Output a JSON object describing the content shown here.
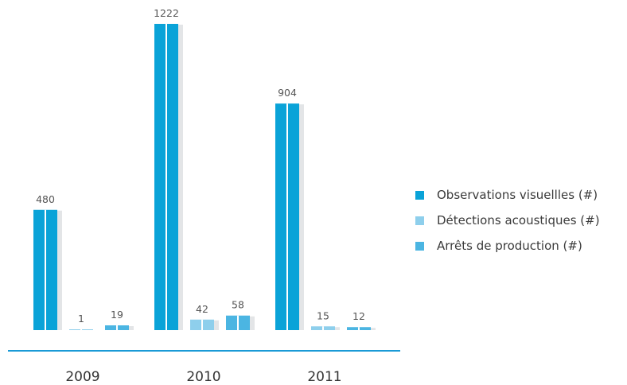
{
  "chart_data": {
    "type": "bar",
    "categories": [
      "2009",
      "2010",
      "2011"
    ],
    "series": [
      {
        "name": "Observations visuellles (#)",
        "values": [
          480,
          1222,
          904
        ],
        "color": "#0aa3d8"
      },
      {
        "name": "Détections acoustiques (#)",
        "values": [
          1,
          42,
          15
        ],
        "color": "#8ecfec"
      },
      {
        "name": "Arrêts de production (#)",
        "values": [
          19,
          58,
          12
        ],
        "color": "#4bb5e2"
      }
    ],
    "data_labels": true,
    "legend_position": "right",
    "grid": false,
    "axis_color": "#1a9ad6",
    "shadow_color": "#e3e5e7"
  }
}
